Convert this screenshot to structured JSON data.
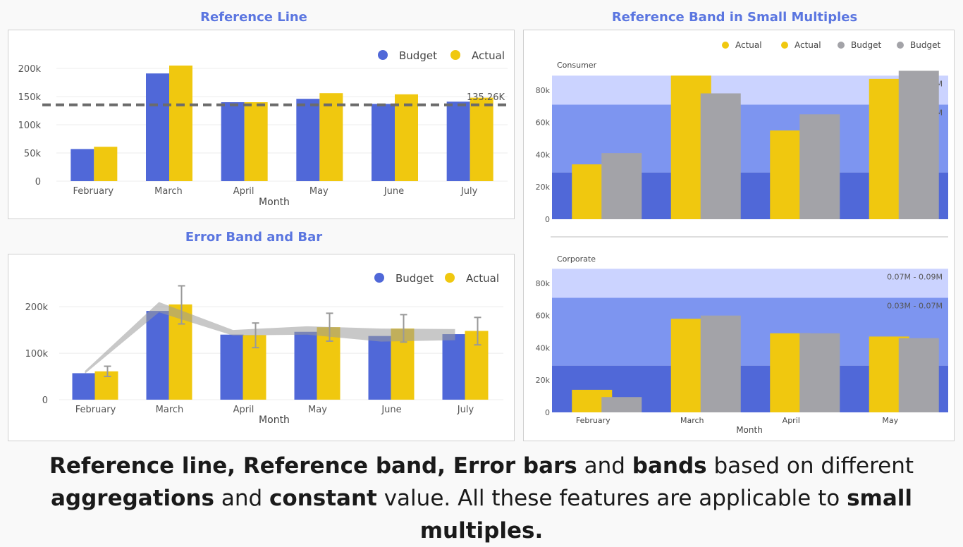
{
  "titles": {
    "ref_line": "Reference Line",
    "error_band": "Error Band and Bar",
    "ref_band": "Reference Band in Small Multiples"
  },
  "caption": {
    "p1": "Reference line, Reference band, Error bars",
    "p2": " and ",
    "p3": "bands",
    "p4": " based on different ",
    "p5": "aggregations",
    "p6": " and ",
    "p7": "constant",
    "p8": " value.  All these features are applicable to ",
    "p9": "small multiples."
  },
  "colors": {
    "budget": "#5068d8",
    "actual": "#f0c80f",
    "budget_gray": "#a3a3a8",
    "band_light": "#cbd3ff",
    "band_mid": "#7d95f0",
    "band_dark": "#5068d8"
  },
  "chart_data": [
    {
      "id": "ref_line",
      "type": "bar",
      "title": "Reference Line",
      "xlabel": "Month",
      "ylabel": "",
      "categories": [
        "February",
        "March",
        "April",
        "May",
        "June",
        "July"
      ],
      "series": [
        {
          "name": "Budget",
          "values": [
            57000,
            191000,
            140000,
            146000,
            137000,
            141000
          ]
        },
        {
          "name": "Actual",
          "values": [
            61000,
            205000,
            140000,
            156000,
            154000,
            148000
          ]
        }
      ],
      "ylim": [
        0,
        230000
      ],
      "yticks": [
        0,
        50000,
        100000,
        150000,
        200000
      ],
      "ytick_labels": [
        "0",
        "50k",
        "100k",
        "150k",
        "200k"
      ],
      "reference_line": {
        "value": 135260,
        "label": "135.26K"
      },
      "legend": "top-right",
      "grid": true
    },
    {
      "id": "error_band",
      "type": "bar",
      "title": "Error Band and Bar",
      "xlabel": "Month",
      "ylabel": "",
      "categories": [
        "February",
        "March",
        "April",
        "May",
        "June",
        "July"
      ],
      "series": [
        {
          "name": "Budget",
          "values": [
            57000,
            191000,
            140000,
            146000,
            137000,
            141000
          ]
        },
        {
          "name": "Actual",
          "values": [
            61000,
            205000,
            139000,
            156000,
            153000,
            148000
          ]
        }
      ],
      "error_bars": {
        "upper": [
          72000,
          245000,
          165000,
          186000,
          183000,
          177000
        ],
        "lower": [
          50000,
          163000,
          112000,
          126000,
          124000,
          118000
        ]
      },
      "error_band": {
        "upper": [
          62000,
          210000,
          150000,
          158000,
          153000,
          152000
        ],
        "lower": [
          56000,
          188000,
          138000,
          140000,
          125000,
          128000
        ]
      },
      "ylim": [
        0,
        270000
      ],
      "yticks": [
        0,
        100000,
        200000
      ],
      "ytick_labels": [
        "0",
        "100k",
        "200k"
      ],
      "legend": "top-right",
      "grid": true
    },
    {
      "id": "ref_band",
      "type": "bar",
      "title": "Reference Band in Small Multiples",
      "xlabel": "Month",
      "legend_entries": [
        "Actual",
        "Actual",
        "Budget",
        "Budget"
      ],
      "categories": [
        "February",
        "March",
        "April",
        "May"
      ],
      "ylim": [
        0,
        90000
      ],
      "yticks": [
        0,
        20000,
        40000,
        60000,
        80000
      ],
      "ytick_labels": [
        "0",
        "20k",
        "40k",
        "60k",
        "80k"
      ],
      "panels": [
        {
          "name": "Consumer",
          "series": [
            {
              "name": "Actual",
              "values": [
                34000,
                89000,
                55000,
                87000
              ]
            },
            {
              "name": "Budget",
              "values": [
                41000,
                78000,
                65000,
                92000
              ]
            }
          ],
          "bands": [
            {
              "from": 0,
              "to": 29000,
              "label": ""
            },
            {
              "from": 29000,
              "to": 71000,
              "label": "M"
            },
            {
              "from": 71000,
              "to": 89000,
              "label": "M"
            }
          ]
        },
        {
          "name": "Corporate",
          "series": [
            {
              "name": "Actual",
              "values": [
                14000,
                58000,
                49000,
                47000
              ]
            },
            {
              "name": "Budget",
              "values": [
                9500,
                60000,
                49000,
                46000
              ]
            }
          ],
          "bands": [
            {
              "from": 0,
              "to": 29000,
              "label": ""
            },
            {
              "from": 29000,
              "to": 71000,
              "label": "0.03M - 0.07M"
            },
            {
              "from": 71000,
              "to": 89000,
              "label": "0.07M - 0.09M"
            }
          ]
        }
      ]
    }
  ]
}
